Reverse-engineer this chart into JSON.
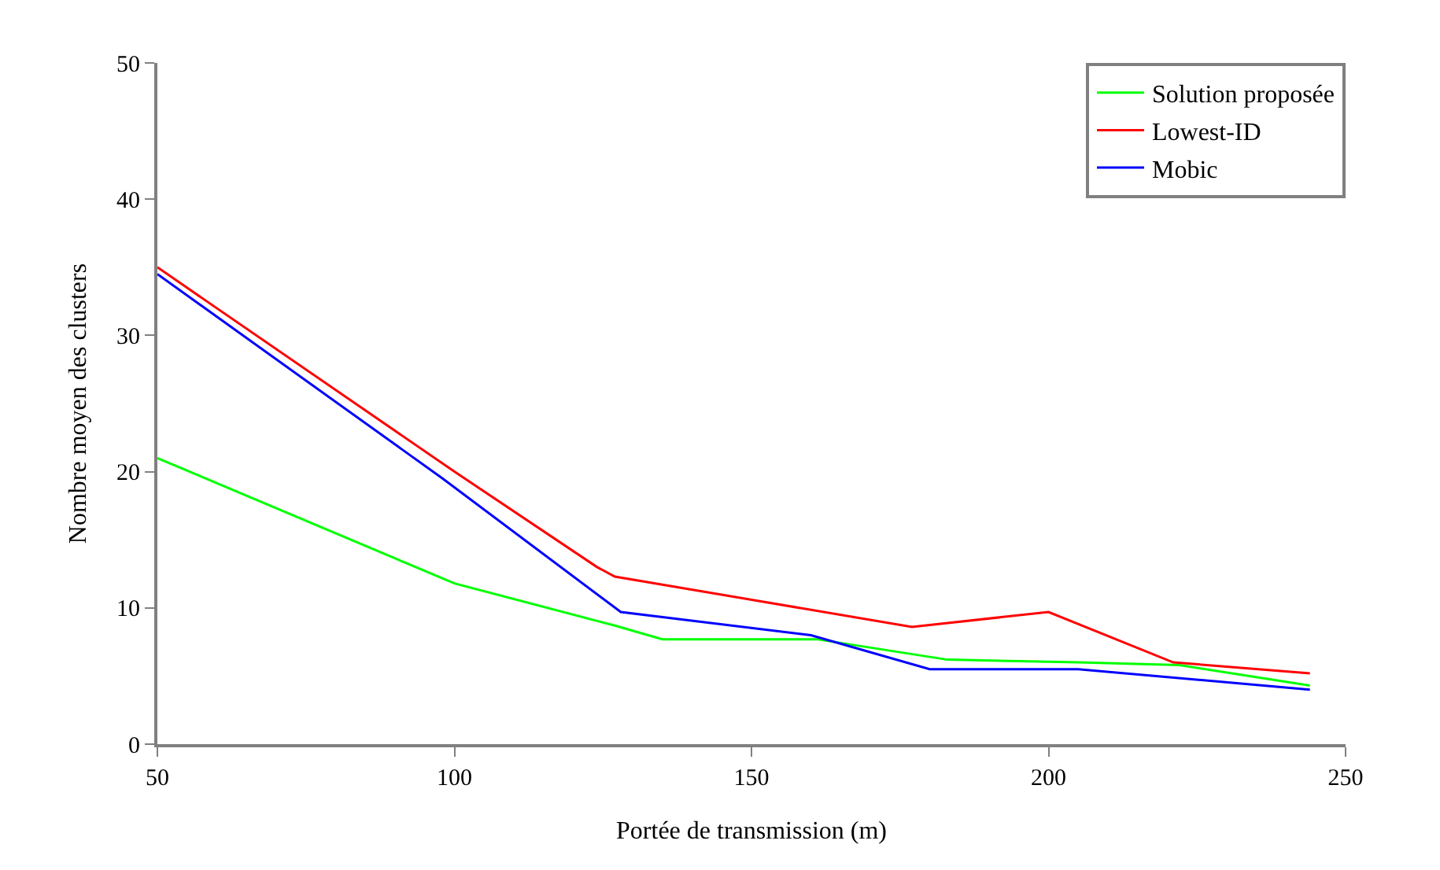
{
  "chart_data": {
    "type": "line",
    "xlabel": "Portée de transmission (m)",
    "ylabel": "Nombre moyen des clusters",
    "xlim": [
      50,
      250
    ],
    "xticks": [
      50,
      100,
      150,
      200,
      250
    ],
    "ylim": [
      0,
      50
    ],
    "yticks": [
      0,
      10,
      20,
      30,
      40,
      50
    ],
    "legend": "top right",
    "marker": "none",
    "line_style": "solid",
    "series": [
      {
        "name": "Solution proposée",
        "color": "#00ff00",
        "x": [
          50,
          100,
          127,
          135,
          161,
          183,
          205,
          222,
          244
        ],
        "values": [
          21,
          11.8,
          8.7,
          7.7,
          7.7,
          6.2,
          6,
          5.8,
          4.3
        ]
      },
      {
        "name": "Lowest-ID",
        "color": "#ff0000",
        "x": [
          50,
          100,
          124,
          127,
          177,
          200,
          221,
          244
        ],
        "values": [
          35,
          20,
          13,
          12.3,
          8.6,
          9.7,
          6,
          5.2
        ]
      },
      {
        "name": "Mobic",
        "color": "#0000ff",
        "x": [
          50,
          98,
          128,
          160,
          180,
          205,
          244
        ],
        "values": [
          34.5,
          19.5,
          9.7,
          8,
          5.5,
          5.5,
          4
        ]
      }
    ]
  }
}
